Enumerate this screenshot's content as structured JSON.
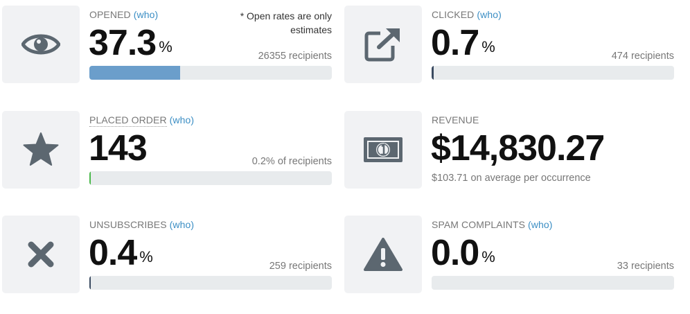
{
  "colors": {
    "icon": "#5c6770",
    "bar_blue": "#6b9ecb",
    "bar_dark": "#3a4a60",
    "bar_green": "#49b84a",
    "who_link": "#3b8ec4"
  },
  "opened": {
    "label": "OPENED",
    "who": "(who)",
    "value": "37.3",
    "unit": "%",
    "note": "* Open rates are only estimates",
    "recipients": "26355 recipients",
    "progress_fraction": 0.373,
    "icon": "eye-icon"
  },
  "clicked": {
    "label": "CLICKED",
    "who": "(who)",
    "value": "0.7",
    "unit": "%",
    "recipients": "474 recipients",
    "progress_fraction": 0.007,
    "icon": "external-link-icon"
  },
  "placed_order": {
    "label": "PLACED ORDER",
    "who": "(who)",
    "value": "143",
    "recipients": "0.2% of recipients",
    "progress_fraction": 0.002,
    "icon": "star-icon"
  },
  "revenue": {
    "label": "REVENUE",
    "value": "$14,830.27",
    "average": "$103.71 on average per occurrence",
    "icon": "money-icon"
  },
  "unsubscribes": {
    "label": "UNSUBSCRIBES",
    "who": "(who)",
    "value": "0.4",
    "unit": "%",
    "recipients": "259 recipients",
    "progress_fraction": 0.004,
    "icon": "close-icon"
  },
  "spam": {
    "label": "SPAM COMPLAINTS",
    "who": "(who)",
    "value": "0.0",
    "unit": "%",
    "recipients": "33 recipients",
    "progress_fraction": 0.0,
    "icon": "warning-icon"
  }
}
